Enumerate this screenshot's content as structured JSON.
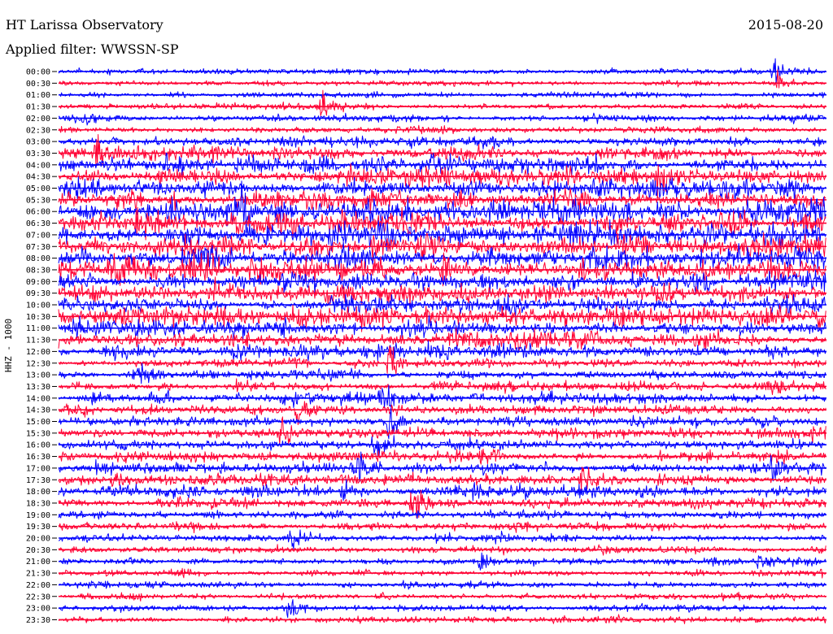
{
  "header": {
    "station": "HT Larissa Observatory",
    "date": "2015-08-20",
    "filter": "Applied filter: WWSSN-SP"
  },
  "chart_data": {
    "type": "line",
    "channel_label": "HHZ - 1000",
    "trace_colors": [
      "#0000ff",
      "#ff0033"
    ],
    "rows": [
      "00:00",
      "00:30",
      "01:00",
      "01:30",
      "02:00",
      "02:30",
      "03:00",
      "03:30",
      "04:00",
      "04:30",
      "05:00",
      "05:30",
      "06:00",
      "06:30",
      "07:00",
      "07:30",
      "08:00",
      "08:30",
      "09:00",
      "09:30",
      "10:00",
      "10:30",
      "11:00",
      "11:30",
      "12:00",
      "12:30",
      "13:00",
      "13:30",
      "14:00",
      "14:30",
      "15:00",
      "15:30",
      "16:00",
      "16:30",
      "17:00",
      "17:30",
      "18:00",
      "18:30",
      "19:00",
      "19:30",
      "20:00",
      "20:30",
      "21:00",
      "21:30",
      "22:00",
      "22:30",
      "23:00",
      "23:30"
    ],
    "activity": [
      1,
      1,
      1,
      1.2,
      1.5,
      1.6,
      2,
      3.5,
      4,
      4.5,
      5,
      5,
      5.5,
      5.5,
      5.5,
      5.5,
      6,
      6,
      5.5,
      5.5,
      5,
      5,
      4.5,
      4,
      3.5,
      2,
      2,
      2,
      2.5,
      2.5,
      2.5,
      2.5,
      2.5,
      2.5,
      2.5,
      2.5,
      2.5,
      2.2,
      2,
      2,
      1.6,
      1.5,
      1.5,
      1.4,
      1.3,
      1.3,
      1.3,
      1.2
    ],
    "events": [
      {
        "row": 0,
        "x": 0.93,
        "amp": 1.6
      },
      {
        "row": 1,
        "x": 0.935,
        "amp": 1.4
      },
      {
        "row": 3,
        "x": 0.34,
        "amp": 2.2
      },
      {
        "row": 4,
        "x": 0.035,
        "amp": 1.4
      },
      {
        "row": 7,
        "x": 0.05,
        "amp": 1.5
      },
      {
        "row": 8,
        "x": 0.14,
        "amp": 1.4
      },
      {
        "row": 9,
        "x": 0.78,
        "amp": 2.2
      },
      {
        "row": 12,
        "x": 0.24,
        "amp": 2.0
      },
      {
        "row": 14,
        "x": 0.72,
        "amp": 2.0
      },
      {
        "row": 17,
        "x": 0.5,
        "amp": 2.0
      },
      {
        "row": 19,
        "x": 0.35,
        "amp": 1.8
      },
      {
        "row": 22,
        "x": 0.23,
        "amp": 2.0
      },
      {
        "row": 25,
        "x": 0.43,
        "amp": 3.0
      },
      {
        "row": 26,
        "x": 0.1,
        "amp": 1.6
      },
      {
        "row": 27,
        "x": 0.93,
        "amp": 1.4
      },
      {
        "row": 28,
        "x": 0.42,
        "amp": 2.8
      },
      {
        "row": 29,
        "x": 0.31,
        "amp": 2.0
      },
      {
        "row": 30,
        "x": 0.43,
        "amp": 2.4
      },
      {
        "row": 31,
        "x": 0.29,
        "amp": 2.4
      },
      {
        "row": 32,
        "x": 0.41,
        "amp": 1.8
      },
      {
        "row": 33,
        "x": 0.55,
        "amp": 1.5
      },
      {
        "row": 34,
        "x": 0.39,
        "amp": 2.0
      },
      {
        "row": 34,
        "x": 0.93,
        "amp": 1.8
      },
      {
        "row": 35,
        "x": 0.07,
        "amp": 1.3
      },
      {
        "row": 35,
        "x": 0.68,
        "amp": 1.4
      },
      {
        "row": 36,
        "x": 0.37,
        "amp": 1.6
      },
      {
        "row": 36,
        "x": 0.54,
        "amp": 1.4
      },
      {
        "row": 37,
        "x": 0.46,
        "amp": 1.8
      },
      {
        "row": 40,
        "x": 0.3,
        "amp": 1.2
      },
      {
        "row": 42,
        "x": 0.55,
        "amp": 1.6
      },
      {
        "row": 42,
        "x": 0.91,
        "amp": 1.0
      },
      {
        "row": 46,
        "x": 0.3,
        "amp": 1.6
      }
    ]
  }
}
